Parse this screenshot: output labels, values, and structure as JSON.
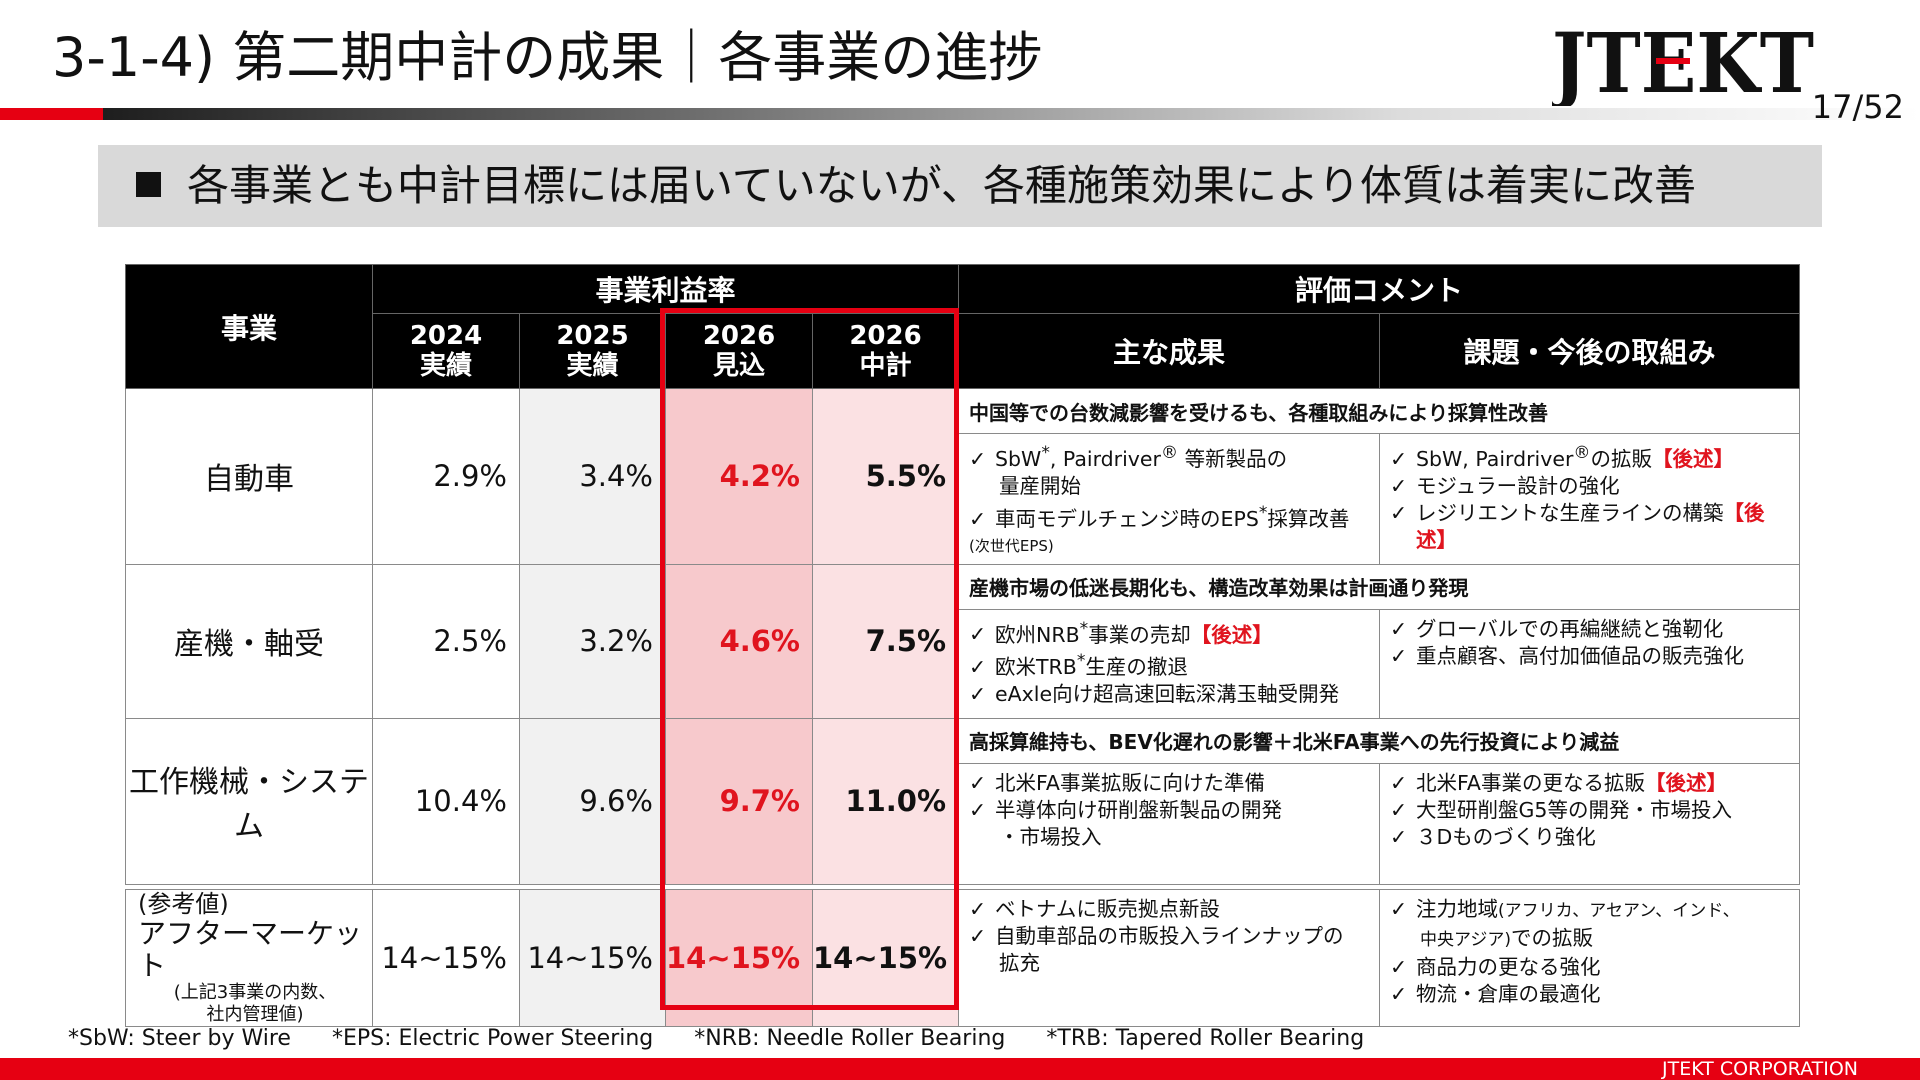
{
  "header": {
    "title": "3-1-4) 第二期中計の成果｜各事業の進捗",
    "logo_text": "JTEKT",
    "page": "17/52"
  },
  "banner": {
    "text": "各事業とも中計目標には届いていないが、各種施策効果により体質は着実に改善"
  },
  "table": {
    "col_business": "事業",
    "group_profit": "事業利益率",
    "group_comment": "評価コメント",
    "years": [
      {
        "year": "2024",
        "label": "実績"
      },
      {
        "year": "2025",
        "label": "実績"
      },
      {
        "year": "2026",
        "label": "見込"
      },
      {
        "year": "2026",
        "label": "中計"
      }
    ],
    "sub_achievements": "主な成果",
    "sub_issues": "課題・今後の取組み",
    "rows": [
      {
        "name": "自動車",
        "values": [
          "2.9%",
          "3.4%",
          "4.2%",
          "5.5%"
        ],
        "summary": "中国等での台数減影響を受けるも、各種取組みにより採算性改善",
        "ach1a": "SbW",
        "ach1sup": "*",
        "ach1b": ", Pairdriver",
        "ach1reg": "®",
        "ach1c": " 等新製品の",
        "ach1d": "量産開始",
        "ach2a": "車両モデルチェンジ時のEPS",
        "ach2sup": "*",
        "ach2b": "採算改善",
        "ach2note": "(次世代EPS)",
        "iss1a": "SbW, Pairdriver",
        "iss1reg": "®",
        "iss1b": "の拡販",
        "iss1tag": "【後述】",
        "iss2": "モジュラー設計の強化",
        "iss3a": "レジリエントな生産ラインの構築",
        "iss3tag": "【後述】"
      },
      {
        "name": "産機・軸受",
        "values": [
          "2.5%",
          "3.2%",
          "4.6%",
          "7.5%"
        ],
        "summary": "産機市場の低迷長期化も、構造改革効果は計画通り発現",
        "ach1a": "欧州NRB",
        "ach1sup": "*",
        "ach1b": "事業の売却",
        "ach1tag": "【後述】",
        "ach2a": "欧米TRB",
        "ach2sup": "*",
        "ach2b": "生産の撤退",
        "ach3": "eAxle向け超高速回転深溝玉軸受開発",
        "iss1": "グローバルでの再編継続と強靭化",
        "iss2": "重点顧客、高付加価値品の販売強化"
      },
      {
        "name": "工作機械・システム",
        "values": [
          "10.4%",
          "9.6%",
          "9.7%",
          "11.0%"
        ],
        "summary": "高採算維持も、BEV化遅れの影響＋北米FA事業への先行投資により減益",
        "ach1": "北米FA事業拡販に向けた準備",
        "ach2": "半導体向け研削盤新製品の開発",
        "ach2b": "・市場投入",
        "iss1a": "北米FA事業の更なる拡販",
        "iss1tag": "【後述】",
        "iss2": "大型研削盤G5等の開発・市場投入",
        "iss3": "３Dものづくり強化"
      }
    ],
    "reference": {
      "line1": "(参考値)",
      "line2": "アフターマーケット",
      "line3": "(上記3事業の内数、",
      "line4": "社内管理値)",
      "values": [
        "14~15%",
        "14~15%",
        "14~15%",
        "14~15%"
      ],
      "ach1": "ベトナムに販売拠点新設",
      "ach2": "自動車部品の市販投入ラインナップの",
      "ach2b": "拡充",
      "iss1a": "注力地域",
      "iss1small": "(アフリカ、アセアン、インド、",
      "iss1b_small": "中央アジア)",
      "iss1b": "での拡販",
      "iss2": "商品力の更なる強化",
      "iss3": "物流・倉庫の最適化"
    },
    "tick": "✓"
  },
  "footnotes": [
    "*SbW: Steer by Wire",
    "*EPS: Electric Power Steering",
    "*NRB: Needle Roller Bearing",
    "*TRB: Tapered Roller Bearing"
  ],
  "footer": {
    "company": "JTEKT  CORPORATION"
  },
  "colors": {
    "accent_red": "#e60012",
    "forecast_fill": "#f7c9cc",
    "plan_fill": "#fbe1e3"
  }
}
